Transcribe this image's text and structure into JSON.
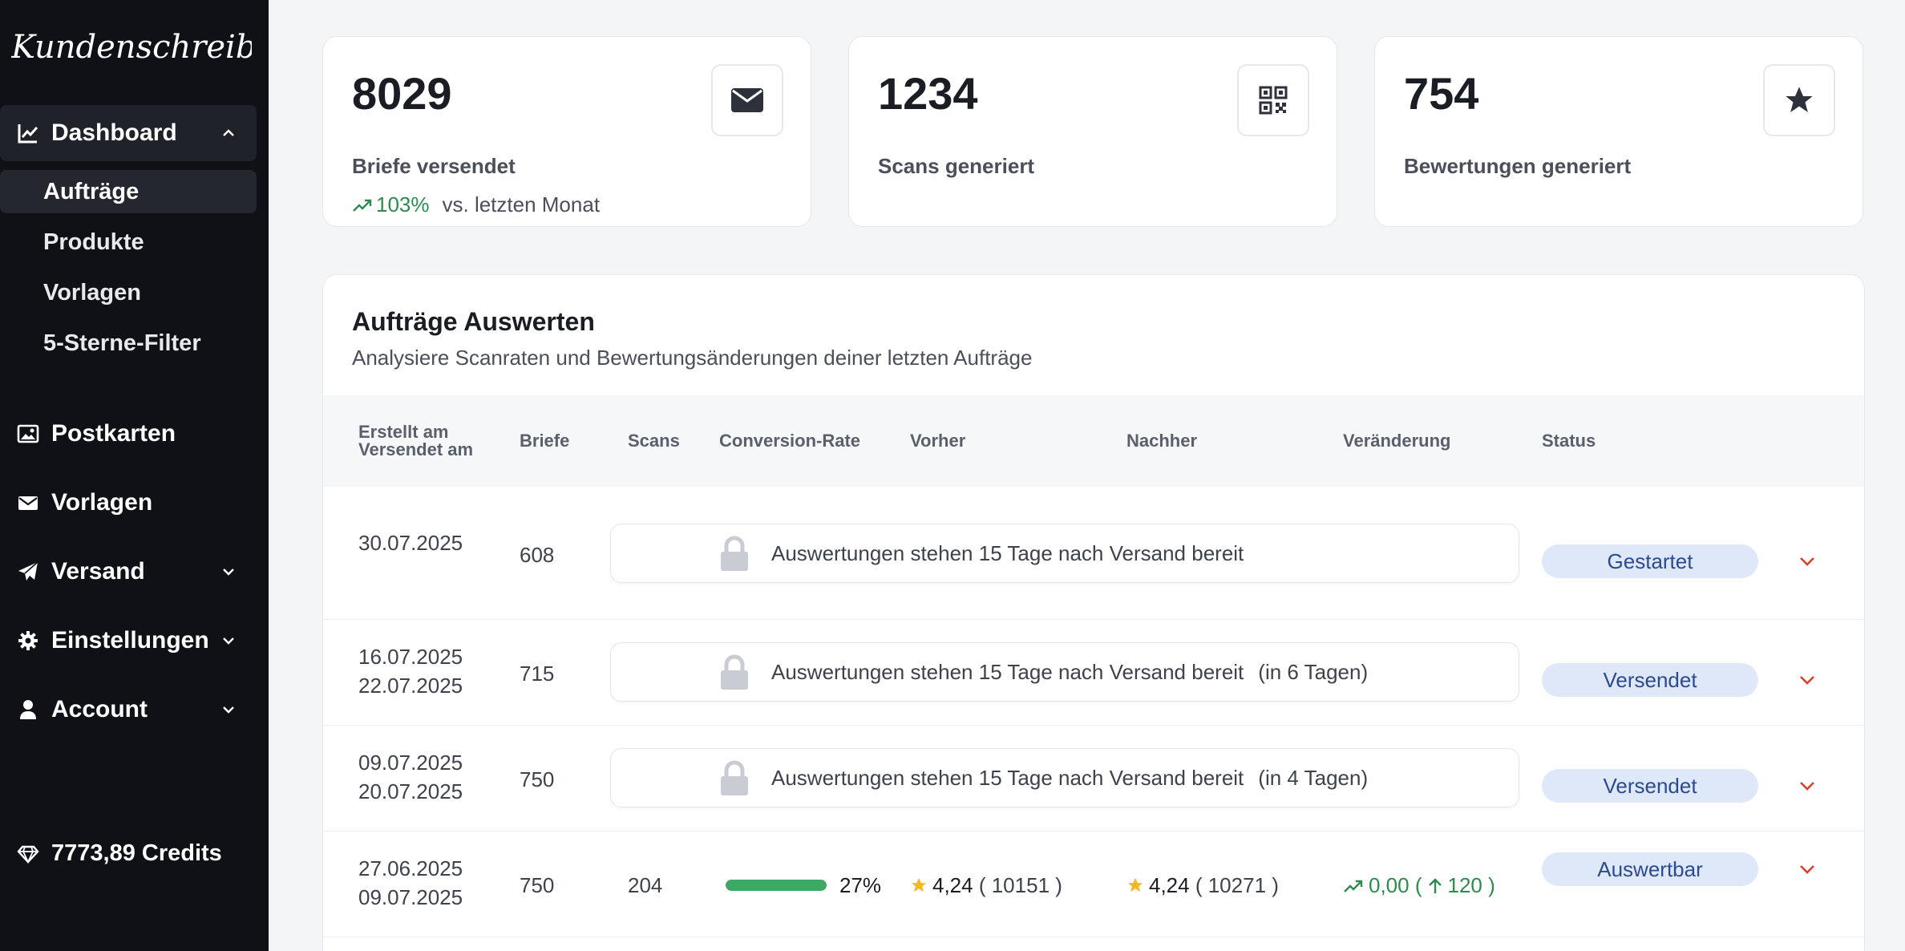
{
  "sidebar": {
    "logo_text": "Kundenschreiber!",
    "nav": {
      "dashboard": "Dashboard",
      "postkarten": "Postkarten",
      "vorlagen": "Vorlagen",
      "versand": "Versand",
      "einstellungen": "Einstellungen",
      "account": "Account"
    },
    "sub": {
      "auftraege": "Aufträge",
      "produkte": "Produkte",
      "vorlagen": "Vorlagen",
      "filter": "5-Sterne-Filter"
    },
    "credits": "7773,89 Credits"
  },
  "stats": [
    {
      "value": "8029",
      "label": "Briefe versendet",
      "trend_pct": "103%",
      "trend_text": "vs. letzten Monat",
      "icon": "envelope-icon"
    },
    {
      "value": "1234",
      "label": "Scans generiert",
      "icon": "qr-code-icon"
    },
    {
      "value": "754",
      "label": "Bewertungen generiert",
      "icon": "star-icon"
    }
  ],
  "panel": {
    "title": "Aufträge Auswerten",
    "subtitle": "Analysiere Scanraten und Bewertungsänderungen deiner letzten Aufträge",
    "columns": {
      "created": "Erstellt am",
      "sent": "Versendet am",
      "letters": "Briefe",
      "scans": "Scans",
      "conversion": "Conversion-Rate",
      "before": "Vorher",
      "after": "Nachher",
      "change": "Veränderung",
      "status": "Status"
    },
    "rows": [
      {
        "created": "30.07.2025",
        "sent": "",
        "letters": "608",
        "locked_text": "Auswertungen stehen 15 Tage nach Versand bereit",
        "locked_days": "",
        "status": "Gestartet"
      },
      {
        "created": "16.07.2025",
        "sent": "22.07.2025",
        "letters": "715",
        "locked_text": "Auswertungen stehen 15 Tage nach Versand bereit",
        "locked_days": "(in 6 Tagen)",
        "status": "Versendet"
      },
      {
        "created": "09.07.2025",
        "sent": "20.07.2025",
        "letters": "750",
        "locked_text": "Auswertungen stehen 15 Tage nach Versand bereit",
        "locked_days": "(in 4 Tagen)",
        "status": "Versendet"
      },
      {
        "created": "27.06.2025",
        "sent": "09.07.2025",
        "letters": "750",
        "scans": "204",
        "conversion_pct": "27%",
        "conversion_value": 0.27,
        "before_rating": "4,24",
        "before_count": "( 10151 )",
        "after_rating": "4,24",
        "after_count": "( 10271 )",
        "change_rating": "0,00 (",
        "change_count": "120 )",
        "status": "Auswertbar"
      }
    ]
  },
  "colors": {
    "sidebar_bg": "#0f1116",
    "accent_green": "#2e8a4e",
    "badge_bg": "#dfe8f8",
    "badge_text": "#2c4b8c",
    "chevron_red": "#d9412e",
    "star_yellow": "#f2b824"
  }
}
